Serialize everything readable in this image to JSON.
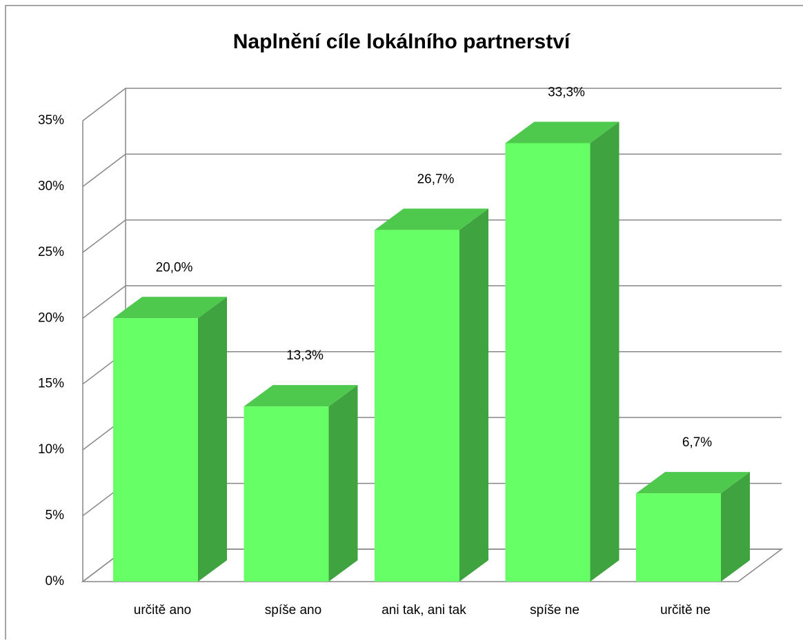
{
  "chart_data": {
    "type": "bar3d",
    "title": "Naplnění cíle lokálního partnerství",
    "categories": [
      "určitě ano",
      "spíše ano",
      "ani tak, ani tak",
      "spíše ne",
      "určitě ne"
    ],
    "values": [
      20.0,
      13.3,
      26.7,
      33.3,
      6.7
    ],
    "value_labels": [
      "20,0%",
      "13,3%",
      "26,7%",
      "33,3%",
      "6,7%"
    ],
    "color": "#66ff66",
    "ylim": [
      0,
      35
    ],
    "yticks": [
      {
        "value": 0,
        "label": "0%"
      },
      {
        "value": 5,
        "label": "5%"
      },
      {
        "value": 10,
        "label": "10%"
      },
      {
        "value": 15,
        "label": "15%"
      },
      {
        "value": 20,
        "label": "20%"
      },
      {
        "value": 25,
        "label": "25%"
      },
      {
        "value": 30,
        "label": "30%"
      },
      {
        "value": 35,
        "label": "35%"
      }
    ],
    "grid": true
  }
}
